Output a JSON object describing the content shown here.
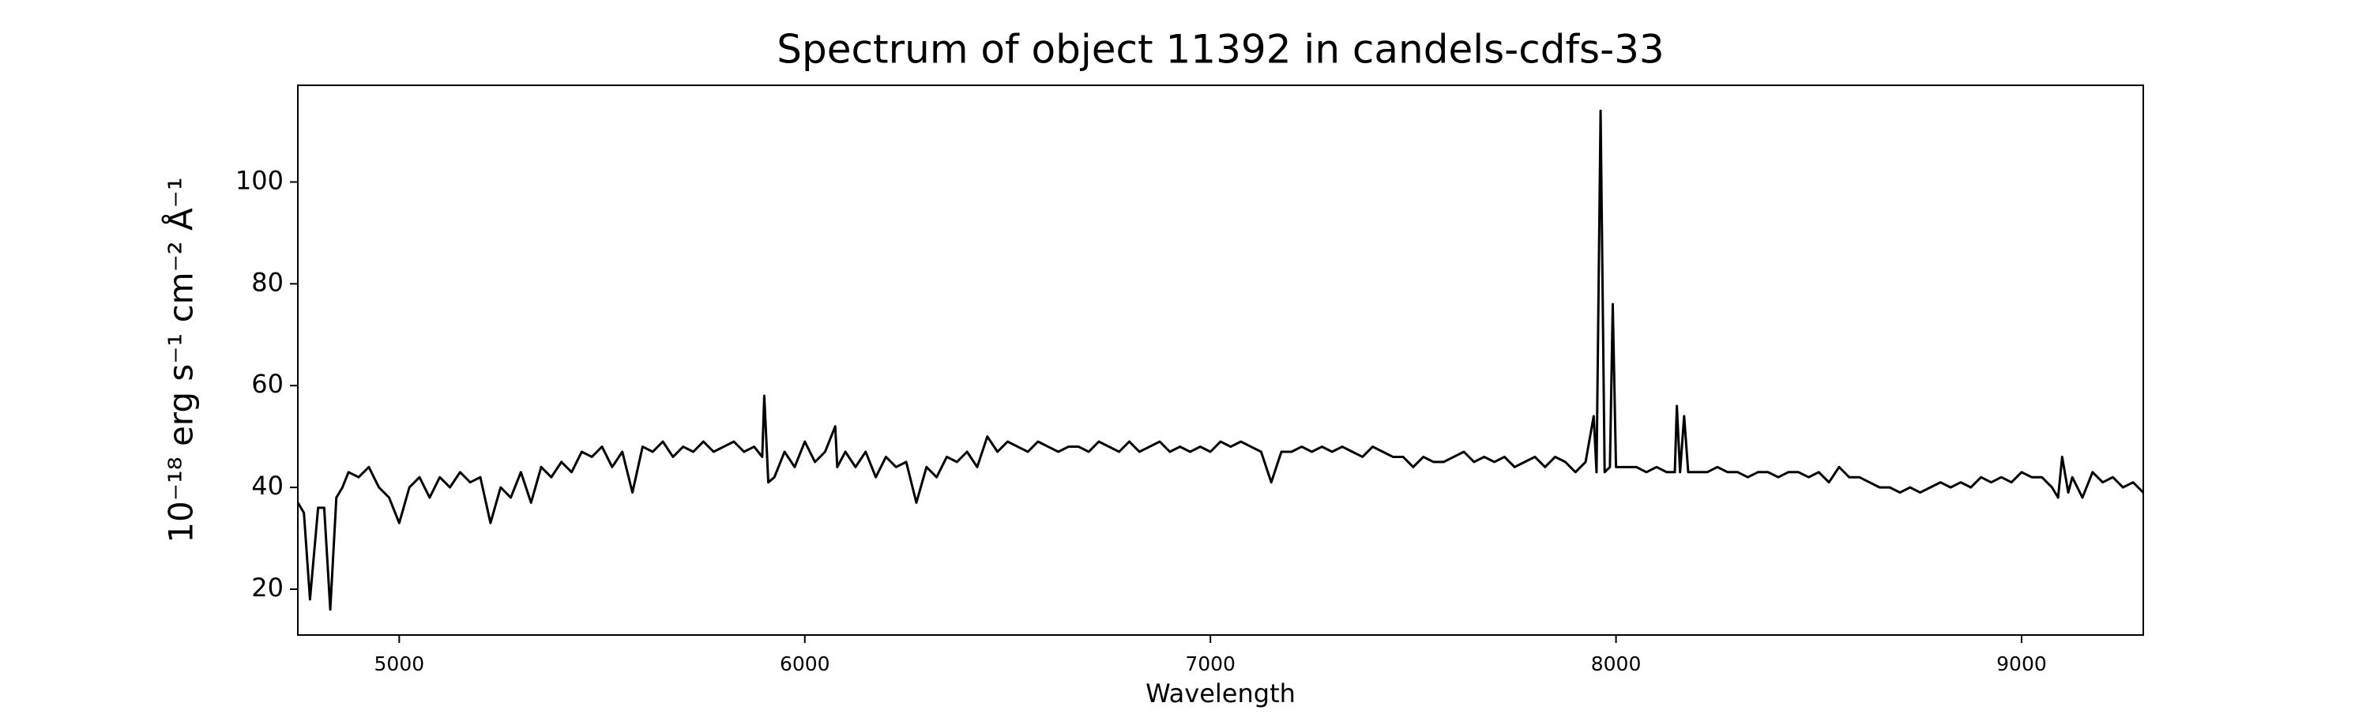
{
  "chart_data": {
    "type": "line",
    "title": "Spectrum of object 11392 in candels-cdfs-33",
    "xlabel": "Wavelength",
    "ylabel": "10⁻¹⁸ erg s⁻¹ cm⁻² Å⁻¹",
    "color": "#000000",
    "xlim": [
      4750,
      9300
    ],
    "ylim": [
      11,
      119
    ],
    "xticks": [
      5000,
      6000,
      7000,
      8000,
      9000
    ],
    "yticks": [
      20,
      40,
      60,
      80,
      100
    ],
    "grid": false,
    "x": [
      4750,
      4765,
      4780,
      4800,
      4815,
      4830,
      4845,
      4860,
      4875,
      4900,
      4925,
      4950,
      4975,
      5000,
      5025,
      5050,
      5075,
      5100,
      5125,
      5150,
      5175,
      5200,
      5225,
      5250,
      5275,
      5300,
      5325,
      5350,
      5375,
      5400,
      5425,
      5450,
      5475,
      5500,
      5525,
      5550,
      5575,
      5600,
      5625,
      5650,
      5675,
      5700,
      5725,
      5750,
      5775,
      5800,
      5825,
      5850,
      5875,
      5895,
      5900,
      5910,
      5925,
      5950,
      5975,
      6000,
      6025,
      6050,
      6075,
      6080,
      6100,
      6125,
      6150,
      6175,
      6200,
      6225,
      6250,
      6275,
      6300,
      6325,
      6350,
      6375,
      6400,
      6425,
      6450,
      6475,
      6500,
      6525,
      6550,
      6575,
      6600,
      6625,
      6650,
      6675,
      6700,
      6725,
      6750,
      6775,
      6800,
      6825,
      6850,
      6875,
      6900,
      6925,
      6950,
      6975,
      7000,
      7025,
      7050,
      7075,
      7100,
      7125,
      7150,
      7175,
      7200,
      7225,
      7250,
      7275,
      7300,
      7325,
      7350,
      7375,
      7400,
      7425,
      7450,
      7475,
      7500,
      7525,
      7550,
      7575,
      7600,
      7625,
      7650,
      7675,
      7700,
      7725,
      7750,
      7775,
      7800,
      7825,
      7850,
      7875,
      7900,
      7925,
      7945,
      7952,
      7962,
      7972,
      7985,
      7992,
      8000,
      8025,
      8050,
      8075,
      8100,
      8125,
      8145,
      8150,
      8158,
      8168,
      8178,
      8200,
      8225,
      8250,
      8275,
      8300,
      8325,
      8350,
      8375,
      8400,
      8425,
      8450,
      8475,
      8500,
      8525,
      8550,
      8575,
      8600,
      8625,
      8650,
      8675,
      8700,
      8725,
      8750,
      8775,
      8800,
      8825,
      8850,
      8875,
      8900,
      8925,
      8950,
      8975,
      9000,
      9025,
      9050,
      9075,
      9090,
      9100,
      9115,
      9125,
      9150,
      9175,
      9200,
      9225,
      9250,
      9275,
      9300
    ],
    "values": [
      37,
      35,
      18,
      36,
      36,
      16,
      38,
      40,
      43,
      42,
      44,
      40,
      38,
      33,
      40,
      42,
      38,
      42,
      40,
      43,
      41,
      42,
      33,
      40,
      38,
      43,
      37,
      44,
      42,
      45,
      43,
      47,
      46,
      48,
      44,
      47,
      39,
      48,
      47,
      49,
      46,
      48,
      47,
      49,
      47,
      48,
      49,
      47,
      48,
      46,
      58,
      41,
      42,
      47,
      44,
      49,
      45,
      47,
      52,
      44,
      47,
      44,
      47,
      42,
      46,
      44,
      45,
      37,
      44,
      42,
      46,
      45,
      47,
      44,
      50,
      47,
      49,
      48,
      47,
      49,
      48,
      47,
      48,
      48,
      47,
      49,
      48,
      47,
      49,
      47,
      48,
      49,
      47,
      48,
      47,
      48,
      47,
      49,
      48,
      49,
      48,
      47,
      41,
      47,
      47,
      48,
      47,
      48,
      47,
      48,
      47,
      46,
      48,
      47,
      46,
      46,
      44,
      46,
      45,
      45,
      46,
      47,
      45,
      46,
      45,
      46,
      44,
      45,
      46,
      44,
      46,
      45,
      43,
      45,
      54,
      43,
      114,
      43,
      44,
      76,
      44,
      44,
      44,
      43,
      44,
      43,
      43,
      56,
      43,
      54,
      43,
      43,
      43,
      44,
      43,
      43,
      42,
      43,
      43,
      42,
      43,
      43,
      42,
      43,
      41,
      44,
      42,
      42,
      41,
      40,
      40,
      39,
      40,
      39,
      40,
      41,
      40,
      41,
      40,
      42,
      41,
      42,
      41,
      43,
      42,
      42,
      40,
      38,
      46,
      39,
      42,
      38,
      43,
      41,
      42,
      40,
      41,
      39
    ]
  }
}
